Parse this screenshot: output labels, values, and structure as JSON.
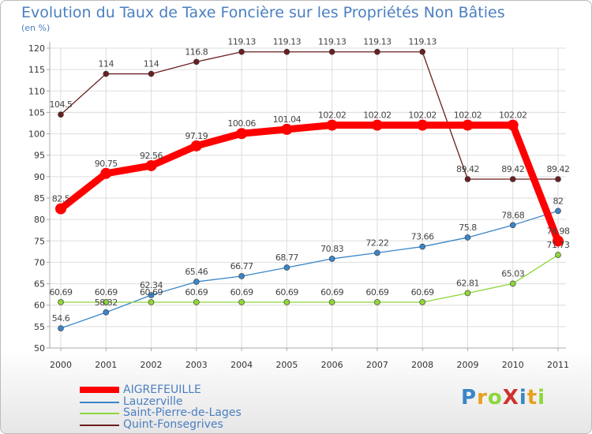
{
  "chart_data": {
    "type": "line",
    "title": "Evolution du Taux de Taxe Foncière sur les Propriétés Non Bâties",
    "ylabel": "(en %)",
    "xlabel": "",
    "ylim": [
      50,
      120
    ],
    "yticks": [
      50,
      55,
      60,
      65,
      70,
      75,
      80,
      85,
      90,
      95,
      100,
      105,
      110,
      115,
      120
    ],
    "categories": [
      "2000",
      "2001",
      "2002",
      "2003",
      "2004",
      "2005",
      "2006",
      "2007",
      "2008",
      "2009",
      "2010",
      "2011"
    ],
    "grid": true,
    "series": [
      {
        "name": "AIGREFEUILLE",
        "color": "#ff0000",
        "values": [
          82.5,
          90.75,
          92.56,
          97.19,
          100.06,
          101.04,
          102.02,
          102.02,
          102.02,
          102.02,
          102.02,
          74.98
        ],
        "labels": [
          "82.5",
          "90.75",
          "92.56",
          "97.19",
          "100.06",
          "101.04",
          "102.02",
          "102.02",
          "102.02",
          "102.02",
          "102.02",
          "74.98"
        ]
      },
      {
        "name": "Lauzerville",
        "color": "#3a86c8",
        "values": [
          54.6,
          58.32,
          62.34,
          65.46,
          66.77,
          68.77,
          70.83,
          72.22,
          73.66,
          75.8,
          78.68,
          82
        ],
        "labels": [
          "54.6",
          "58.32",
          "62.34",
          "65.46",
          "66.77",
          "68.77",
          "70.83",
          "72.22",
          "73.66",
          "75.8",
          "78.68",
          "82"
        ]
      },
      {
        "name": "Saint-Pierre-de-Lages",
        "color": "#8ed63a",
        "values": [
          60.69,
          60.69,
          60.69,
          60.69,
          60.69,
          60.69,
          60.69,
          60.69,
          60.69,
          62.81,
          65.03,
          71.73
        ],
        "labels": [
          "60.69",
          "60.69",
          "60.69",
          "60.69",
          "60.69",
          "60.69",
          "60.69",
          "60.69",
          "60.69",
          "62.81",
          "65.03",
          "71.73"
        ]
      },
      {
        "name": "Quint-Fonsegrives",
        "color": "#6b1f1f",
        "values": [
          104.5,
          114,
          114,
          116.8,
          119.13,
          119.13,
          119.13,
          119.13,
          119.13,
          89.42,
          89.42,
          89.42
        ],
        "labels": [
          "104.5",
          "114",
          "114",
          "116.8",
          "119.13",
          "119.13",
          "119.13",
          "119.13",
          "119.13",
          "89.42",
          "89.42",
          "89.42"
        ]
      }
    ]
  },
  "legend": [
    "AIGREFEUILLE",
    "Lauzerville",
    "Saint-Pierre-de-Lages",
    "Quint-Fonsegrives"
  ],
  "brand": {
    "logo_text": "ProXiti"
  }
}
